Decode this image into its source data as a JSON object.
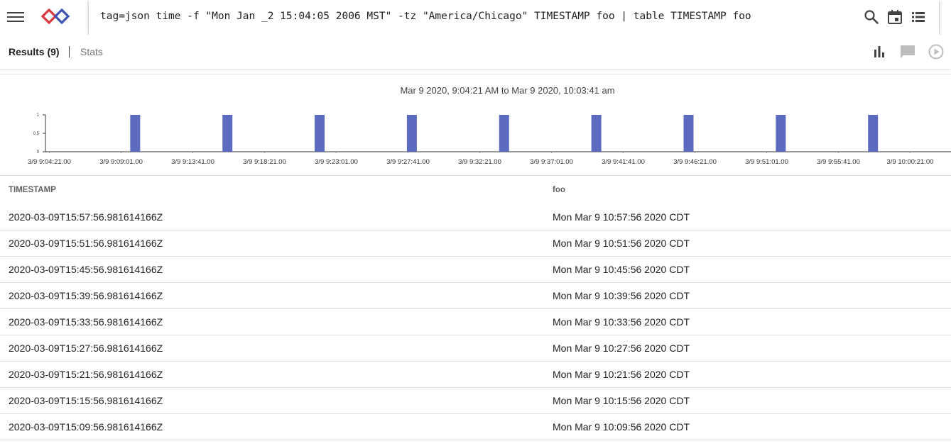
{
  "query": {
    "text": "tag=json time -f \"Mon Jan _2 15:04:05 2006 MST\" -tz \"America/Chicago\" TIMESTAMP foo | table TIMESTAMP foo"
  },
  "icons": {
    "menu": "menu-icon",
    "logo": "gravwell-logo-icon",
    "search": "search-icon",
    "calendar": "calendar-icon",
    "list": "list-icon",
    "chart": "bar-chart-icon",
    "comment": "comment-icon",
    "play": "play-circle-icon"
  },
  "tabs": {
    "results": "Results (9)",
    "stats": "Stats"
  },
  "colors": {
    "bar": "#5c6bc0",
    "logo_red": "#d9383f",
    "logo_blue": "#3f51b5"
  },
  "chart_data": {
    "type": "bar",
    "title": "Mar 9 2020, 9:04:21 AM to Mar 9 2020, 10:03:41 am",
    "y_ticks": [
      "1",
      "0.5",
      "0"
    ],
    "ylim": [
      0,
      1
    ],
    "x_ticks": [
      "3/9 9:04:21.00",
      "3/9 9:09:01.00",
      "3/9 9:13:41.00",
      "3/9 9:18:21.00",
      "3/9 9:23:01.00",
      "3/9 9:27:41.00",
      "3/9 9:32:21.00",
      "3/9 9:37:01.00",
      "3/9 9:41:41.00",
      "3/9 9:46:21.00",
      "3/9 9:51:01.00",
      "3/9 9:55:41.00",
      "3/9 10:00:21.00"
    ],
    "xlim": [
      "3/9 9:04:21",
      "3/9 10:03:41"
    ],
    "x": [
      "3/9 9:09:56",
      "3/9 9:15:56",
      "3/9 9:21:56",
      "3/9 9:27:56",
      "3/9 9:33:56",
      "3/9 9:39:56",
      "3/9 9:45:56",
      "3/9 9:51:56",
      "3/9 9:57:56"
    ],
    "values": [
      1,
      1,
      1,
      1,
      1,
      1,
      1,
      1,
      1
    ],
    "grid": false,
    "legend": "none"
  },
  "table": {
    "columns": [
      "TIMESTAMP",
      "foo"
    ],
    "rows": [
      [
        "2020-03-09T15:57:56.981614166Z",
        "Mon Mar 9 10:57:56 2020 CDT"
      ],
      [
        "2020-03-09T15:51:56.981614166Z",
        "Mon Mar 9 10:51:56 2020 CDT"
      ],
      [
        "2020-03-09T15:45:56.981614166Z",
        "Mon Mar 9 10:45:56 2020 CDT"
      ],
      [
        "2020-03-09T15:39:56.981614166Z",
        "Mon Mar 9 10:39:56 2020 CDT"
      ],
      [
        "2020-03-09T15:33:56.981614166Z",
        "Mon Mar 9 10:33:56 2020 CDT"
      ],
      [
        "2020-03-09T15:27:56.981614166Z",
        "Mon Mar 9 10:27:56 2020 CDT"
      ],
      [
        "2020-03-09T15:21:56.981614166Z",
        "Mon Mar 9 10:21:56 2020 CDT"
      ],
      [
        "2020-03-09T15:15:56.981614166Z",
        "Mon Mar 9 10:15:56 2020 CDT"
      ],
      [
        "2020-03-09T15:09:56.981614166Z",
        "Mon Mar 9 10:09:56 2020 CDT"
      ]
    ]
  }
}
